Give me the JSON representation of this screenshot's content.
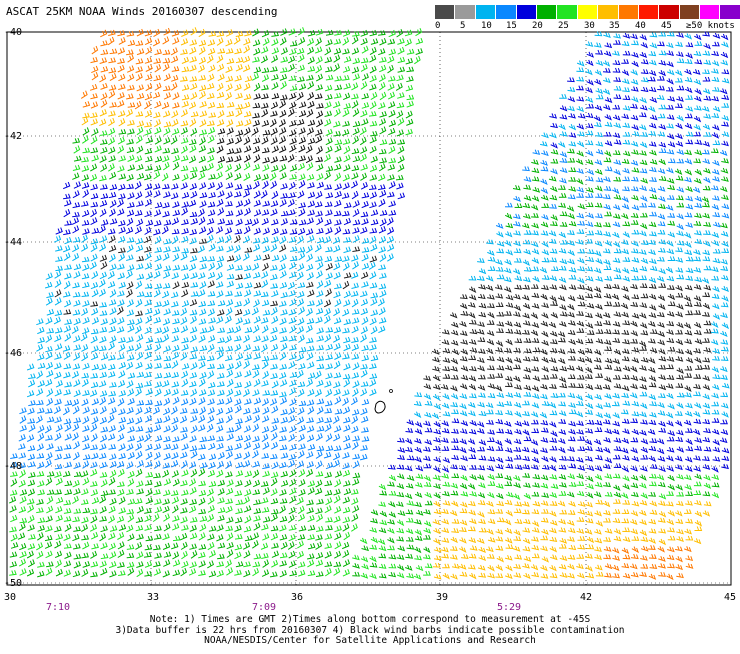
{
  "title": "ASCAT 25KM NOAA Winds 20160307 descending",
  "colorbar": {
    "labels": [
      "0",
      "5",
      "10",
      "15",
      "20",
      "25",
      "30",
      "35",
      "40",
      "45",
      "≥50 knots"
    ],
    "colors": [
      "#4a4a4a",
      "#9a9a9a",
      "#00b4f0",
      "#0a88ff",
      "#0000dd",
      "#00b000",
      "#22e422",
      "#ffff00",
      "#ffbe00",
      "#ff7800",
      "#ff1a00",
      "#cc0000",
      "#7f4020",
      "#ff00ff",
      "#8800cc"
    ]
  },
  "map": {
    "lat_labels": [
      "-40",
      "-42",
      "-44",
      "-46",
      "-48",
      "-50"
    ],
    "lon_labels": [
      "30",
      "33",
      "36",
      "39",
      "42",
      "45"
    ],
    "time_labels": [
      "7:10",
      "7:09",
      "5:29"
    ]
  },
  "notes": [
    "Note: 1) Times are GMT 2)Times along bottom correspond to measurement at -45S",
    "3)Data buffer is 22 hrs from 20160307 4) Black wind barbs indicate possible contamination",
    "NOAA/NESDIS/Center for Satellite Applications and Research"
  ]
}
